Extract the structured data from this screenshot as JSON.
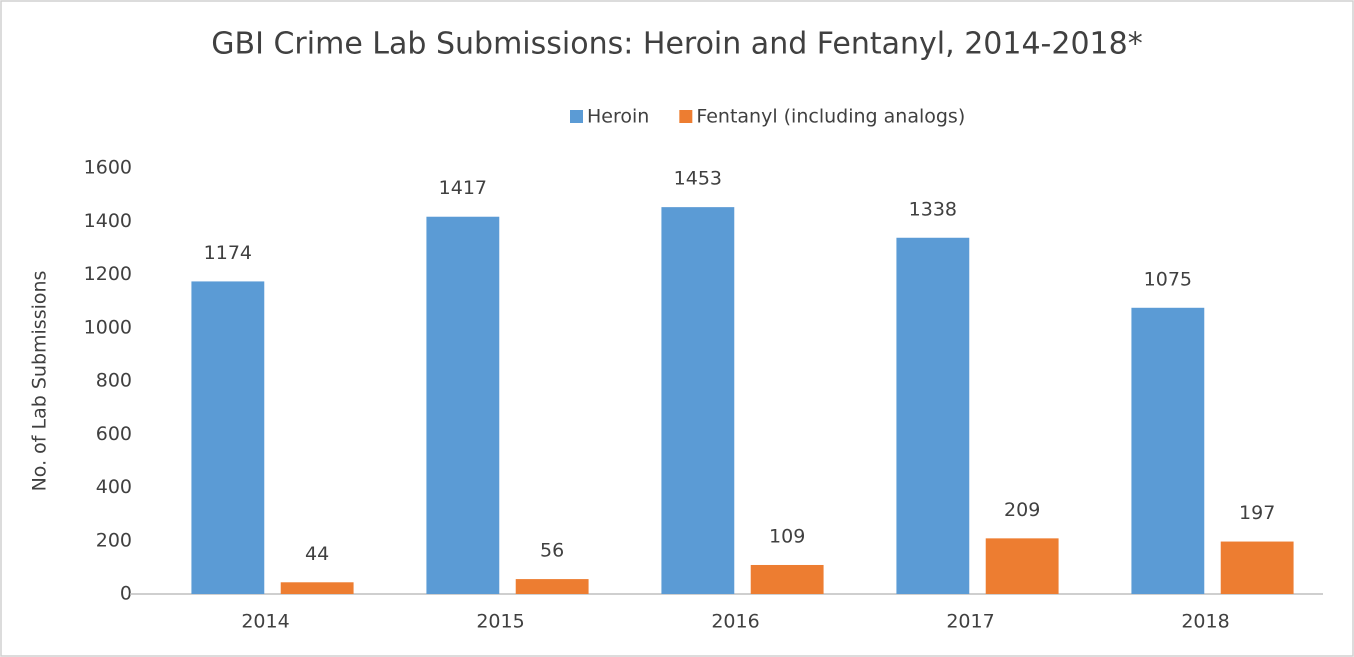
{
  "chart_data": {
    "type": "bar",
    "title": "GBI Crime Lab Submissions: Heroin and Fentanyl, 2014-2018*",
    "y_label": "No. of Lab Submissions",
    "categories": [
      "2014",
      "2015",
      "2016",
      "2017",
      "2018"
    ],
    "series": [
      {
        "name": "Heroin",
        "color": "#5b9bd5",
        "values": [
          1174,
          1417,
          1453,
          1338,
          1075
        ]
      },
      {
        "name": "Fentanyl (including analogs)",
        "color": "#ed7d31",
        "values": [
          44,
          56,
          109,
          209,
          197
        ]
      }
    ],
    "ylim": [
      0,
      1600
    ],
    "yticks": [
      0,
      200,
      400,
      600,
      800,
      1000,
      1200,
      1400,
      1600
    ],
    "grid": false,
    "legend": "top"
  }
}
